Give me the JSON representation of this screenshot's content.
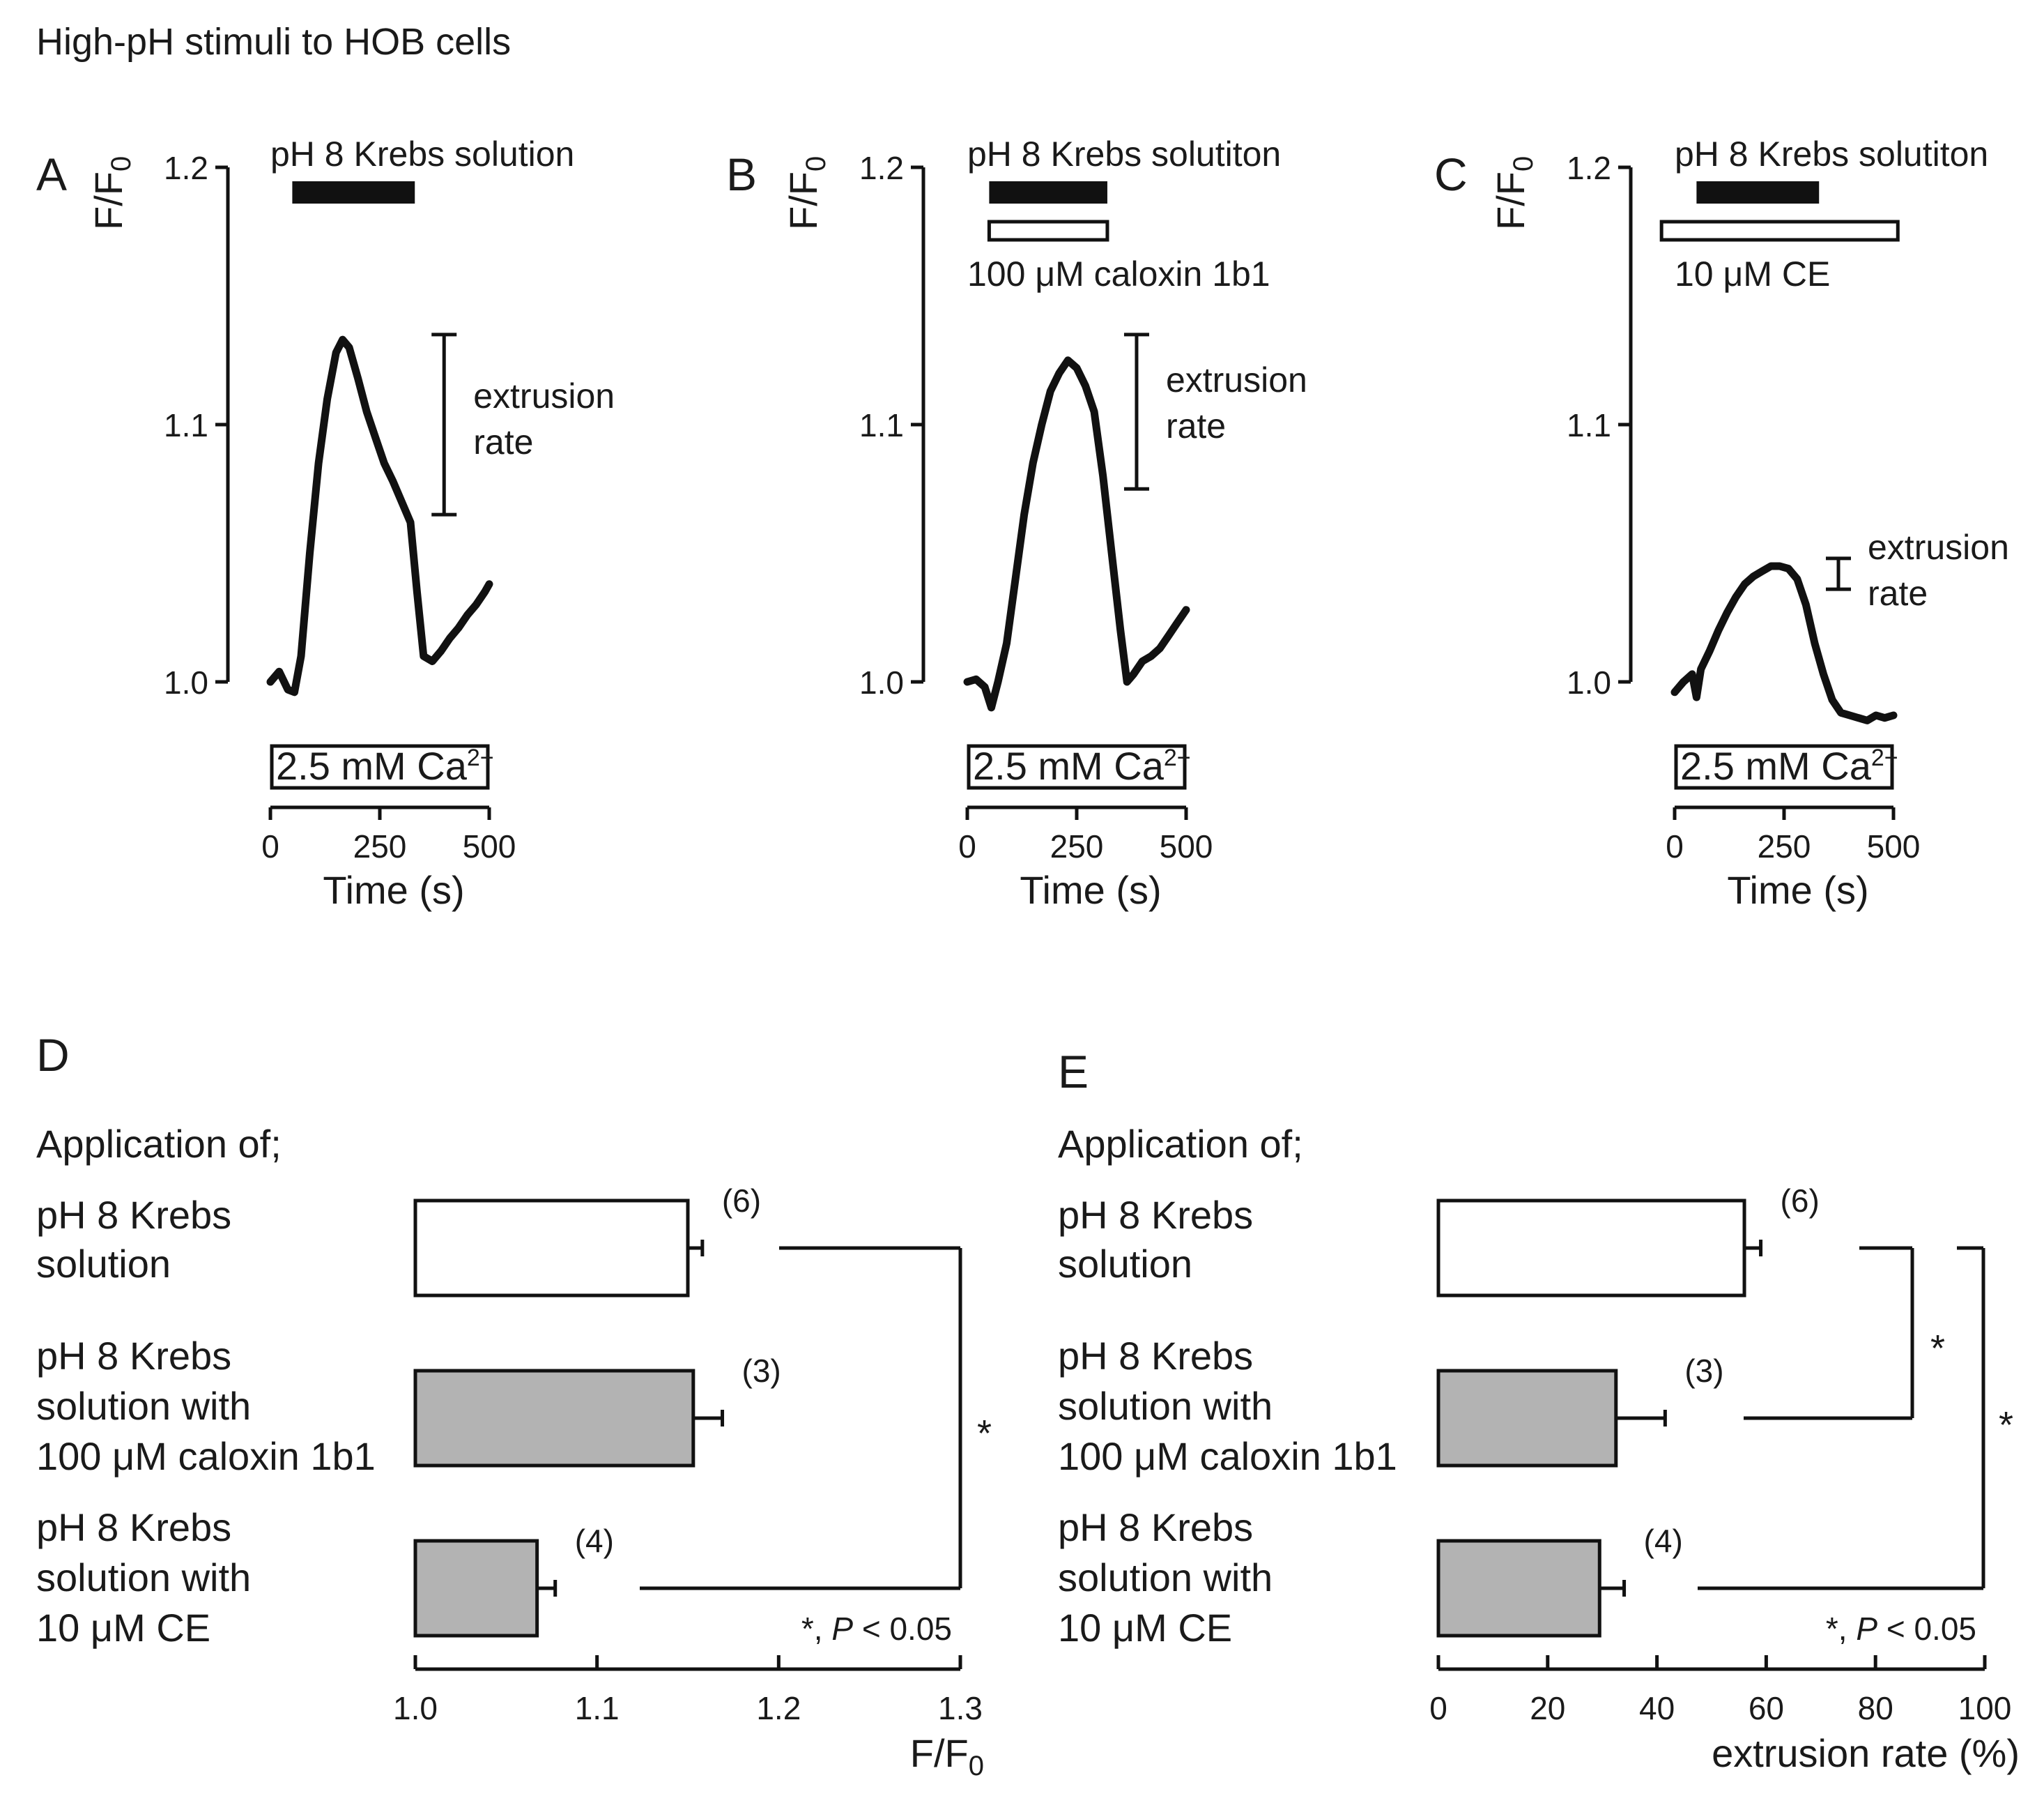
{
  "figure_title": "High-pH stimuli to HOB cells",
  "chart_data": [
    {
      "panel": "A",
      "type": "line",
      "title": "pH 8 Krebs solution",
      "xlabel": "Time (s)",
      "ylabel": "F/F0",
      "xlim": [
        0,
        500
      ],
      "ylim": [
        1.0,
        1.2
      ],
      "xticks": [
        "0",
        "250",
        "500"
      ],
      "yticks": [
        "1.0",
        "1.1",
        "1.2"
      ],
      "stimulus": {
        "label": "pH 8 Krebs solution",
        "start": 50,
        "end": 330
      },
      "drug": null,
      "baseline_bar_label": "2.5 mM Ca",
      "baseline_bar_sup": "2+",
      "extrusion_label": [
        "extrusion",
        "rate"
      ],
      "extrusion_range": [
        1.065,
        1.135
      ],
      "series": [
        {
          "name": "F/F0",
          "x": [
            0,
            20,
            40,
            55,
            70,
            90,
            110,
            130,
            150,
            165,
            180,
            200,
            220,
            240,
            260,
            280,
            300,
            320,
            335,
            350,
            370,
            390,
            410,
            430,
            450,
            470,
            490,
            500
          ],
          "y": [
            1.0,
            1.004,
            0.997,
            0.996,
            1.01,
            1.05,
            1.085,
            1.11,
            1.128,
            1.133,
            1.13,
            1.118,
            1.105,
            1.095,
            1.085,
            1.078,
            1.07,
            1.062,
            1.035,
            1.01,
            1.008,
            1.012,
            1.017,
            1.021,
            1.026,
            1.03,
            1.035,
            1.038
          ]
        }
      ]
    },
    {
      "panel": "B",
      "type": "line",
      "title": "pH 8 Krebs solutiton",
      "xlabel": "Time (s)",
      "ylabel": "F/F0",
      "xlim": [
        0,
        500
      ],
      "ylim": [
        1.0,
        1.2
      ],
      "xticks": [
        "0",
        "250",
        "500"
      ],
      "yticks": [
        "1.0",
        "1.1",
        "1.2"
      ],
      "stimulus": {
        "label": "pH 8 Krebs solutiton",
        "start": 50,
        "end": 320
      },
      "drug": {
        "label": "100 μM caloxin 1b1",
        "start": 50,
        "end": 320
      },
      "baseline_bar_label": "2.5 mM Ca",
      "baseline_bar_sup": "2+",
      "extrusion_label": [
        "extrusion",
        "rate"
      ],
      "extrusion_range": [
        1.075,
        1.135
      ],
      "series": [
        {
          "name": "F/F0",
          "x": [
            0,
            20,
            40,
            55,
            70,
            90,
            110,
            130,
            150,
            170,
            190,
            210,
            230,
            250,
            270,
            290,
            310,
            330,
            350,
            365,
            380,
            400,
            420,
            440,
            460,
            480,
            500
          ],
          "y": [
            1.0,
            1.001,
            0.998,
            0.99,
            1.0,
            1.015,
            1.04,
            1.065,
            1.085,
            1.1,
            1.113,
            1.12,
            1.125,
            1.122,
            1.115,
            1.105,
            1.08,
            1.05,
            1.02,
            1.0,
            1.003,
            1.008,
            1.01,
            1.013,
            1.018,
            1.023,
            1.028
          ]
        }
      ]
    },
    {
      "panel": "C",
      "type": "line",
      "title": "pH 8 Krebs solutiton",
      "xlabel": "Time (s)",
      "ylabel": "F/F0",
      "xlim": [
        0,
        500
      ],
      "ylim": [
        1.0,
        1.2
      ],
      "xticks": [
        "0",
        "250",
        "500"
      ],
      "yticks": [
        "1.0",
        "1.1",
        "1.2"
      ],
      "stimulus": {
        "label": "pH 8 Krebs solutiton",
        "start": 50,
        "end": 330
      },
      "drug": {
        "label": "10 μM CE",
        "start": -30,
        "end": 510
      },
      "baseline_bar_label": "2.5 mM Ca",
      "baseline_bar_sup": "2+",
      "extrusion_label": [
        "extrusion",
        "rate"
      ],
      "extrusion_range": [
        1.036,
        1.048
      ],
      "series": [
        {
          "name": "F/F0",
          "x": [
            0,
            20,
            40,
            50,
            60,
            80,
            100,
            120,
            140,
            160,
            180,
            200,
            220,
            240,
            260,
            280,
            300,
            320,
            340,
            360,
            380,
            400,
            420,
            440,
            460,
            480,
            500
          ],
          "y": [
            0.996,
            1.0,
            1.003,
            0.994,
            1.005,
            1.012,
            1.02,
            1.027,
            1.033,
            1.038,
            1.041,
            1.043,
            1.045,
            1.045,
            1.044,
            1.04,
            1.03,
            1.015,
            1.003,
            0.993,
            0.988,
            0.987,
            0.986,
            0.985,
            0.987,
            0.986,
            0.987
          ]
        }
      ]
    },
    {
      "panel": "D",
      "type": "bar",
      "orientation": "horizontal",
      "header": "Application of;",
      "categories": [
        [
          "pH 8 Krebs",
          "solution"
        ],
        [
          "pH 8 Krebs",
          "solution with",
          "100 μM caloxin 1b1"
        ],
        [
          "pH 8 Krebs",
          "solution with",
          "10 μM CE"
        ]
      ],
      "values": [
        1.15,
        1.153,
        1.067
      ],
      "errors": [
        0.008,
        0.016,
        0.01
      ],
      "n_labels": [
        "(6)",
        "(3)",
        "(4)"
      ],
      "colors": [
        "#ffffff",
        "#b3b3b3",
        "#b3b3b3"
      ],
      "xlim": [
        1.0,
        1.3
      ],
      "xticks": [
        "1.0",
        "1.1",
        "1.2",
        "1.3"
      ],
      "xlabel": "F/F0",
      "significance": [
        {
          "pair": [
            0,
            2
          ],
          "label": "*"
        }
      ],
      "note_star": "*, ",
      "note_p": "P",
      "note_rest": " < 0.05"
    },
    {
      "panel": "E",
      "type": "bar",
      "orientation": "horizontal",
      "header": "Application of;",
      "categories": [
        [
          "pH 8 Krebs",
          "solution"
        ],
        [
          "pH 8 Krebs",
          "solution with",
          "100 μM caloxin 1b1"
        ],
        [
          "pH 8 Krebs",
          "solution with",
          "10 μM CE"
        ]
      ],
      "values": [
        56,
        32.5,
        29.5
      ],
      "errors": [
        3,
        9,
        4.5
      ],
      "n_labels": [
        "(6)",
        "(3)",
        "(4)"
      ],
      "colors": [
        "#ffffff",
        "#b3b3b3",
        "#b3b3b3"
      ],
      "xlim": [
        0,
        100
      ],
      "xticks": [
        "0",
        "20",
        "40",
        "60",
        "80",
        "100"
      ],
      "xlabel": "extrusion rate (%)",
      "significance": [
        {
          "pair": [
            0,
            1
          ],
          "label": "*"
        },
        {
          "pair": [
            0,
            2
          ],
          "label": "*"
        }
      ],
      "note_star": "*, ",
      "note_p": "P",
      "note_rest": " < 0.05"
    }
  ]
}
